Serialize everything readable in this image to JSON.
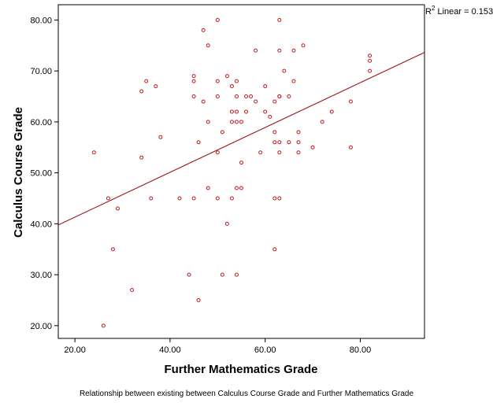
{
  "chart_data": {
    "type": "scatter",
    "title": "",
    "xlabel": "Further Mathematics Grade",
    "ylabel": "Calculus Course Grade",
    "caption": "Relationship between existing between Calculus Course Grade and Further Mathematics Grade",
    "xlim": [
      16.5,
      93.5
    ],
    "ylim": [
      17.5,
      83.0
    ],
    "x_ticks": [
      "20.00",
      "40.00",
      "60.00",
      "80.00"
    ],
    "x_tick_values": [
      20,
      40,
      60,
      80
    ],
    "y_ticks": [
      "20.00",
      "30.00",
      "40.00",
      "50.00",
      "60.00",
      "70.00",
      "80.00"
    ],
    "y_tick_values": [
      20,
      30,
      40,
      50,
      60,
      70,
      80
    ],
    "grid": false,
    "fit_line": {
      "label_prefix": "R",
      "label_sup": "2",
      "label_suffix": " Linear = 0.153",
      "intercept": 32.5,
      "slope": 0.44
    },
    "colors": {
      "points": "#c0191e",
      "fit_line": "#a0161a",
      "axis": "#000000"
    },
    "points": [
      [
        24,
        54
      ],
      [
        26,
        20
      ],
      [
        27,
        45
      ],
      [
        28,
        35
      ],
      [
        29,
        43
      ],
      [
        32,
        27
      ],
      [
        34,
        53
      ],
      [
        34,
        66
      ],
      [
        35,
        68
      ],
      [
        36,
        45
      ],
      [
        37,
        67
      ],
      [
        38,
        57
      ],
      [
        42,
        45
      ],
      [
        44,
        30
      ],
      [
        45,
        69
      ],
      [
        45,
        68
      ],
      [
        45,
        65
      ],
      [
        45,
        45
      ],
      [
        46,
        56
      ],
      [
        46,
        25
      ],
      [
        47,
        78
      ],
      [
        47,
        64
      ],
      [
        48,
        75
      ],
      [
        48,
        60
      ],
      [
        48,
        47
      ],
      [
        50,
        80
      ],
      [
        50,
        68
      ],
      [
        50,
        65
      ],
      [
        50,
        54
      ],
      [
        50,
        45
      ],
      [
        51,
        58
      ],
      [
        51,
        30
      ],
      [
        52,
        69
      ],
      [
        52,
        40
      ],
      [
        53,
        67
      ],
      [
        53,
        62
      ],
      [
        53,
        60
      ],
      [
        53,
        45
      ],
      [
        54,
        68
      ],
      [
        54,
        65
      ],
      [
        54,
        62
      ],
      [
        54,
        60
      ],
      [
        54,
        47
      ],
      [
        54,
        30
      ],
      [
        55,
        60
      ],
      [
        55,
        52
      ],
      [
        55,
        47
      ],
      [
        56,
        65
      ],
      [
        56,
        62
      ],
      [
        57,
        65
      ],
      [
        58,
        74
      ],
      [
        58,
        64
      ],
      [
        59,
        54
      ],
      [
        60,
        67
      ],
      [
        60,
        62
      ],
      [
        61,
        61
      ],
      [
        62,
        64
      ],
      [
        62,
        58
      ],
      [
        62,
        56
      ],
      [
        62,
        45
      ],
      [
        62,
        35
      ],
      [
        63,
        80
      ],
      [
        63,
        74
      ],
      [
        63,
        65
      ],
      [
        63,
        65
      ],
      [
        63,
        56
      ],
      [
        63,
        54
      ],
      [
        63,
        45
      ],
      [
        64,
        70
      ],
      [
        65,
        65
      ],
      [
        65,
        56
      ],
      [
        66,
        74
      ],
      [
        66,
        68
      ],
      [
        67,
        58
      ],
      [
        67,
        56
      ],
      [
        67,
        54
      ],
      [
        68,
        75
      ],
      [
        70,
        55
      ],
      [
        72,
        60
      ],
      [
        74,
        62
      ],
      [
        78,
        64
      ],
      [
        78,
        55
      ],
      [
        82,
        73
      ],
      [
        82,
        72
      ],
      [
        82,
        70
      ]
    ]
  }
}
